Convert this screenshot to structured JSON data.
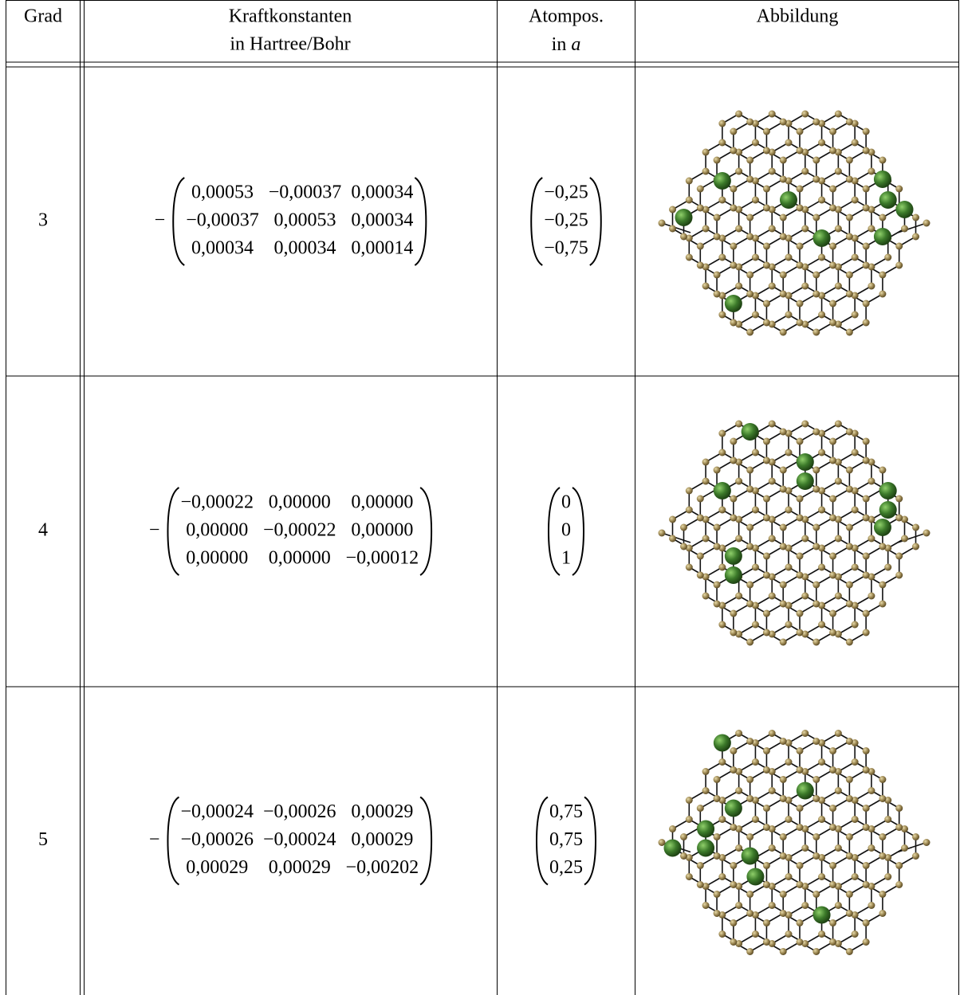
{
  "header": {
    "col1": "Grad",
    "col2": [
      "Kraftkonstanten",
      "in Hartree/Bohr"
    ],
    "col3": {
      "line1": "Atompos.",
      "line2": "in ",
      "unit": "a"
    },
    "col4": "Abbildung"
  },
  "rows": [
    {
      "grad": "3",
      "sign": "−",
      "matrix": [
        [
          "0,00053",
          "−0,00037",
          "0,00034"
        ],
        [
          "−0,00037",
          "0,00053",
          "0,00034"
        ],
        [
          "0,00034",
          "0,00034",
          "0,00014"
        ]
      ],
      "position": [
        "−0,25",
        "−0,25",
        "−0,75"
      ]
    },
    {
      "grad": "4",
      "sign": "−",
      "matrix": [
        [
          "−0,00022",
          "0,00000",
          "0,00000"
        ],
        [
          "0,00000",
          "−0,00022",
          "0,00000"
        ],
        [
          "0,00000",
          "0,00000",
          "−0,00012"
        ]
      ],
      "position": [
        "0",
        "0",
        "1"
      ]
    },
    {
      "grad": "5",
      "sign": "−",
      "matrix": [
        [
          "−0,00024",
          "−0,00026",
          "0,00029"
        ],
        [
          "−0,00026",
          "−0,00024",
          "0,00029"
        ],
        [
          "0,00029",
          "0,00029",
          "−0,00202"
        ]
      ],
      "position": [
        "0,75",
        "0,75",
        "0,25"
      ]
    }
  ]
}
